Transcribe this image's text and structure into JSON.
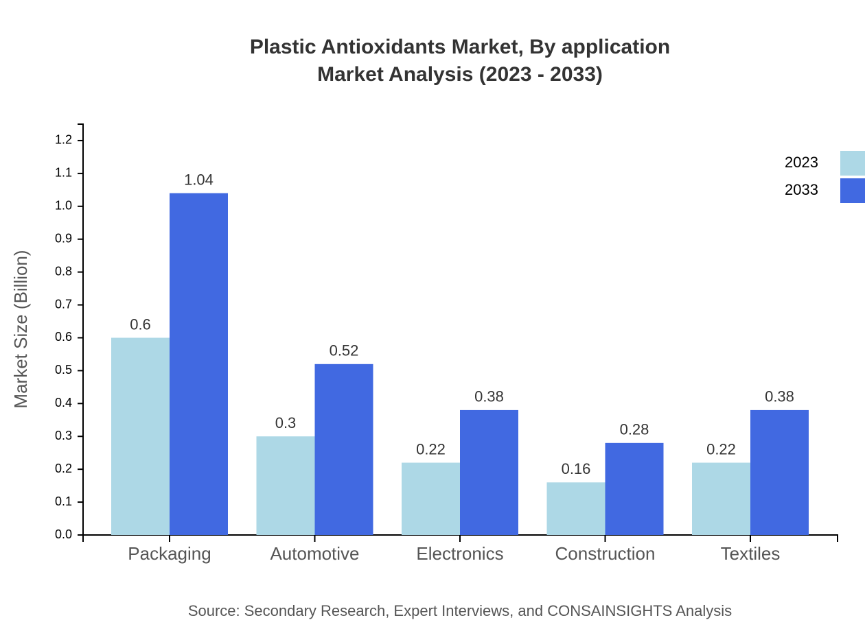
{
  "chart_data": {
    "type": "bar",
    "title": "Plastic Antioxidants Market, By application",
    "subtitle": "Market Analysis (2023 - 2033)",
    "y_label": "Market Size (Billion)",
    "source": "Source: Secondary Research, Expert Interviews, and CONSAINSIGHTS Analysis",
    "categories": [
      "Packaging",
      "Automotive",
      "Electronics",
      "Construction",
      "Textiles"
    ],
    "series": [
      {
        "name": "2023",
        "color": "#add8e6",
        "values": [
          0.6,
          0.3,
          0.22,
          0.16,
          0.22
        ]
      },
      {
        "name": "2033",
        "color": "#4169e1",
        "values": [
          1.04,
          0.52,
          0.38,
          0.28,
          0.38
        ]
      }
    ],
    "ylim": [
      0,
      1.25
    ],
    "yticks": [
      {
        "value": 0,
        "label": "0.0"
      },
      0.1,
      0.2,
      0.3,
      0.4,
      0.5,
      0.6,
      0.7,
      0.8,
      0.9,
      {
        "value": 1,
        "label": "1.0"
      },
      1.1,
      1.2
    ],
    "legend": "top-right"
  }
}
